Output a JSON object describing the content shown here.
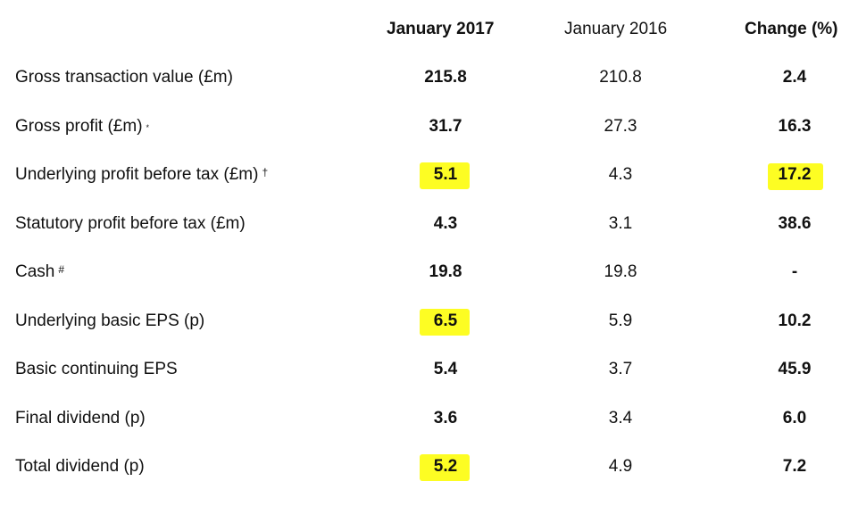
{
  "headers": {
    "col1": "January 2017",
    "col2": "January 2016",
    "col3": "Change (%)"
  },
  "rows": [
    {
      "label": "Gross transaction value (£m)",
      "mark": "",
      "y2017": "215.8",
      "y2016": "210.8",
      "change": "2.4",
      "hl2017": false,
      "hlChange": false
    },
    {
      "label": "Gross profit (£m)",
      "mark": "*",
      "y2017": "31.7",
      "y2016": "27.3",
      "change": "16.3",
      "hl2017": false,
      "hlChange": false
    },
    {
      "label": "Underlying profit before tax (£m)",
      "mark": "†",
      "y2017": "5.1",
      "y2016": "4.3",
      "change": "17.2",
      "hl2017": true,
      "hlChange": true
    },
    {
      "label": "Statutory profit before tax (£m)",
      "mark": "",
      "y2017": "4.3",
      "y2016": "3.1",
      "change": "38.6",
      "hl2017": false,
      "hlChange": false
    },
    {
      "label": "Cash",
      "mark": "#",
      "y2017": "19.8",
      "y2016": "19.8",
      "change": "-",
      "hl2017": false,
      "hlChange": false
    },
    {
      "label": "Underlying basic EPS (p)",
      "mark": "",
      "y2017": "6.5",
      "y2016": "5.9",
      "change": "10.2",
      "hl2017": true,
      "hlChange": false
    },
    {
      "label": "Basic continuing EPS",
      "mark": "",
      "y2017": "5.4",
      "y2016": "3.7",
      "change": "45.9",
      "hl2017": false,
      "hlChange": false
    },
    {
      "label": "Final dividend (p)",
      "mark": "",
      "y2017": "3.6",
      "y2016": "3.4",
      "change": "6.0",
      "hl2017": false,
      "hlChange": false
    },
    {
      "label": "Total dividend (p)",
      "mark": "",
      "y2017": "5.2",
      "y2016": "4.9",
      "change": "7.2",
      "hl2017": true,
      "hlChange": false
    }
  ],
  "colors": {
    "highlight": "#fdfd23",
    "text": "#111111",
    "background": "#ffffff"
  }
}
